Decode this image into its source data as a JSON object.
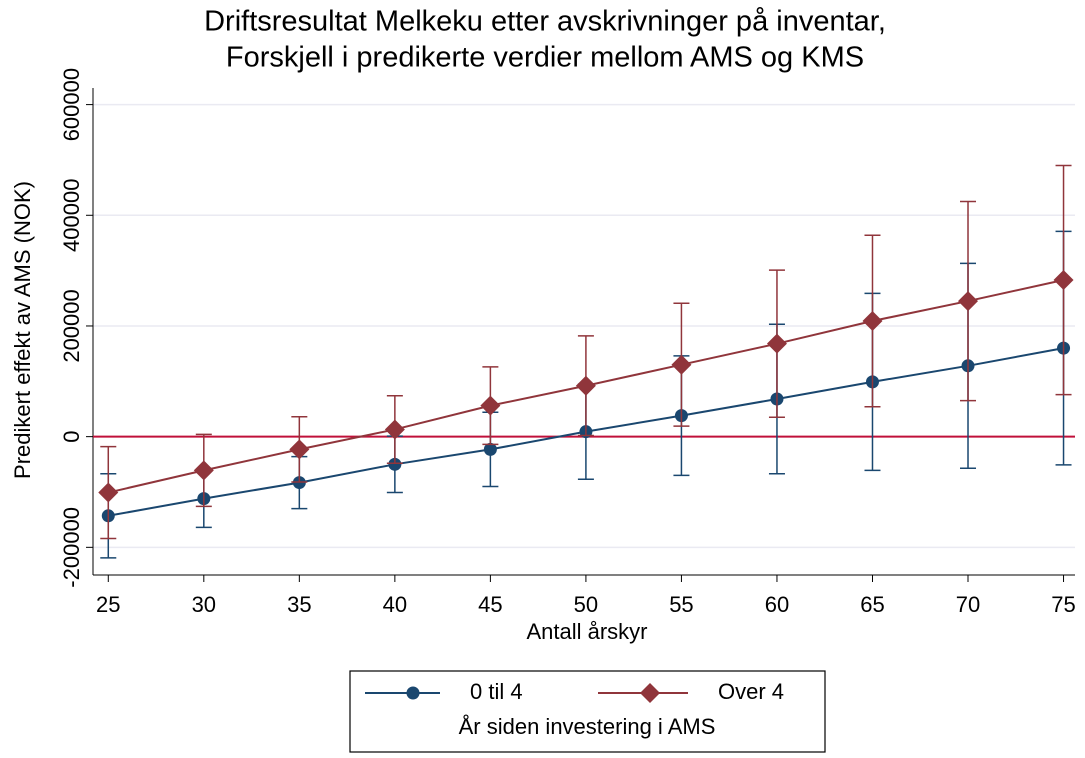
{
  "chart_data": {
    "type": "line",
    "title": [
      "Driftsresultat Melkeku etter avskrivninger på inventar,",
      "Forskjell i predikerte verdier mellom AMS og KMS"
    ],
    "x_label": "Antall årskyr",
    "y_label": "Predikert effekt av AMS (NOK)",
    "legend_title": "År siden investering i AMS",
    "x": [
      25,
      30,
      35,
      40,
      45,
      50,
      55,
      60,
      65,
      70,
      75
    ],
    "series": [
      {
        "name": "0 til 4",
        "color": "#1a476f",
        "marker": "circle",
        "values": [
          -143000,
          -112000,
          -83000,
          -50000,
          -23000,
          9000,
          38000,
          68000,
          99000,
          128000,
          160000
        ],
        "errors": [
          76000,
          52000,
          47000,
          51000,
          67000,
          86000,
          108000,
          135000,
          160000,
          185000,
          211000
        ]
      },
      {
        "name": "Over 4",
        "color": "#90353b",
        "marker": "diamond",
        "values": [
          -101000,
          -61000,
          -23000,
          13000,
          56000,
          92000,
          130000,
          168000,
          209000,
          245000,
          283000
        ],
        "errors": [
          83000,
          65000,
          59000,
          61000,
          70000,
          90000,
          111000,
          133000,
          155000,
          180000,
          207000
        ]
      }
    ],
    "xlim": [
      24.2,
      75.6
    ],
    "xticks": [
      25,
      30,
      35,
      40,
      45,
      50,
      55,
      60,
      65,
      70,
      75
    ],
    "ylim": [
      -250000,
      630000
    ],
    "yticks": [
      -200000,
      0,
      200000,
      400000,
      600000
    ],
    "grid": true,
    "yline": 0,
    "yline_color": "#c0103a",
    "legend": "bottom"
  }
}
